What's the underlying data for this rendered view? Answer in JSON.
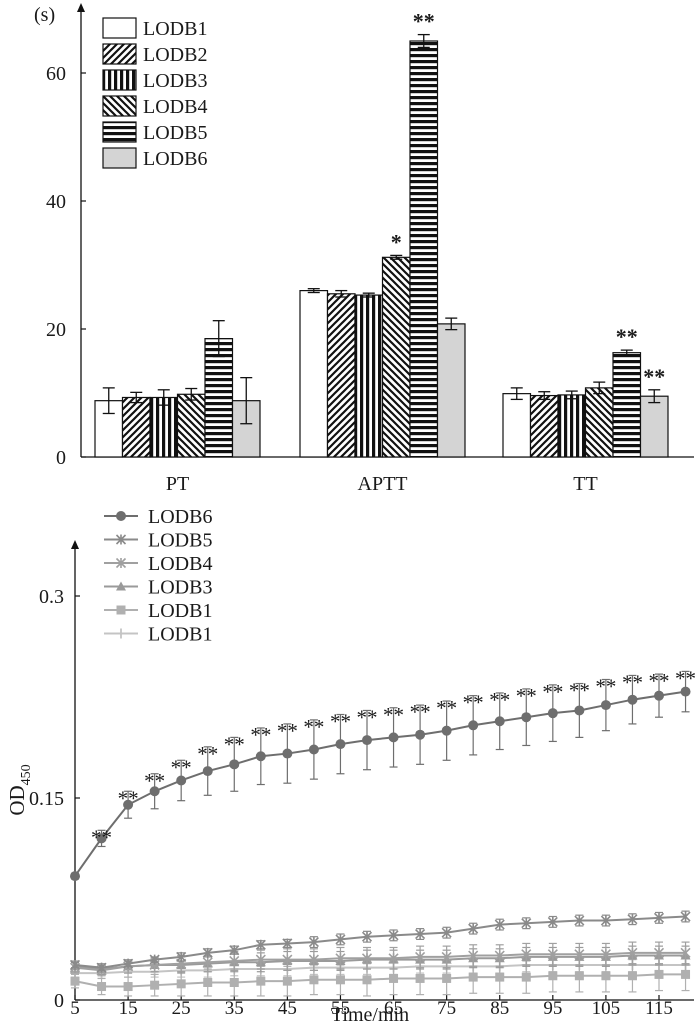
{
  "chart_data": [
    {
      "type": "bar",
      "ylabel": "(s)",
      "ylim": [
        0,
        70
      ],
      "yticks": [
        0,
        20,
        40,
        60
      ],
      "categories": [
        "PT",
        "APTT",
        "TT"
      ],
      "legend_position": "top-left",
      "series": [
        {
          "name": "LODB1",
          "pattern": "white",
          "values": [
            8.8,
            26.0,
            9.9
          ],
          "errors": [
            2.0,
            0.3,
            0.9
          ]
        },
        {
          "name": "LODB2",
          "pattern": "diag-right",
          "values": [
            9.3,
            25.5,
            9.6
          ],
          "errors": [
            0.8,
            0.5,
            0.6
          ]
        },
        {
          "name": "LODB3",
          "pattern": "vertical",
          "values": [
            9.3,
            25.3,
            9.7
          ],
          "errors": [
            1.2,
            0.3,
            0.6
          ]
        },
        {
          "name": "LODB4",
          "pattern": "diag-left",
          "values": [
            9.8,
            31.2,
            10.8
          ],
          "errors": [
            0.9,
            0.3,
            0.9
          ]
        },
        {
          "name": "LODB5",
          "pattern": "horizontal",
          "values": [
            18.5,
            65.0,
            16.3
          ],
          "errors": [
            2.8,
            1.0,
            0.4
          ]
        },
        {
          "name": "LODB6",
          "pattern": "gray",
          "values": [
            8.8,
            20.8,
            9.5
          ],
          "errors": [
            3.6,
            0.9,
            1.0
          ]
        }
      ],
      "annotations": [
        {
          "series": 3,
          "category": 1,
          "text": "*"
        },
        {
          "series": 4,
          "category": 1,
          "text": "**"
        },
        {
          "series": 4,
          "category": 2,
          "text": "**"
        },
        {
          "series": 5,
          "category": 2,
          "text": "**"
        }
      ]
    },
    {
      "type": "line",
      "xlabel": "Time/min",
      "ylabel": "OD",
      "ylabel_sub": "450",
      "xlim": [
        5,
        120
      ],
      "ylim": [
        0,
        0.35
      ],
      "xticks": [
        5,
        15,
        25,
        35,
        45,
        55,
        65,
        75,
        85,
        95,
        105,
        115
      ],
      "yticks": [
        0,
        0.15,
        0.3
      ],
      "ytick_labels": [
        "0",
        "0.15",
        "0.3"
      ],
      "legend_position": "top-left",
      "x": [
        5,
        10,
        15,
        20,
        25,
        30,
        35,
        40,
        45,
        50,
        55,
        60,
        65,
        70,
        75,
        80,
        85,
        90,
        95,
        100,
        105,
        110,
        115,
        120
      ],
      "series": [
        {
          "name": "LODB6",
          "marker": "circle",
          "color": "#6e6e6e",
          "values": [
            0.092,
            0.12,
            0.145,
            0.155,
            0.163,
            0.17,
            0.175,
            0.181,
            0.183,
            0.186,
            0.19,
            0.193,
            0.195,
            0.197,
            0.2,
            0.204,
            0.207,
            0.21,
            0.213,
            0.215,
            0.219,
            0.223,
            0.226,
            0.229
          ],
          "errors": [
            0.002,
            0.006,
            0.01,
            0.013,
            0.015,
            0.018,
            0.02,
            0.021,
            0.022,
            0.022,
            0.022,
            0.022,
            0.022,
            0.022,
            0.022,
            0.022,
            0.021,
            0.021,
            0.021,
            0.02,
            0.019,
            0.018,
            0.016,
            0.015
          ]
        },
        {
          "name": "LODB5",
          "marker": "x",
          "color": "#8a8a8a",
          "values": [
            0.026,
            0.024,
            0.027,
            0.03,
            0.032,
            0.035,
            0.037,
            0.041,
            0.042,
            0.043,
            0.045,
            0.047,
            0.048,
            0.049,
            0.05,
            0.053,
            0.056,
            0.057,
            0.058,
            0.059,
            0.059,
            0.06,
            0.061,
            0.062
          ],
          "errors": [
            0.002,
            0.002,
            0.002,
            0.002,
            0.003,
            0.003,
            0.003,
            0.003,
            0.003,
            0.004,
            0.004,
            0.004,
            0.004,
            0.004,
            0.004,
            0.004,
            0.004,
            0.004,
            0.004,
            0.004,
            0.004,
            0.004,
            0.004,
            0.004
          ]
        },
        {
          "name": "LODB4",
          "marker": "x",
          "color": "#a0a0a0",
          "values": [
            0.024,
            0.022,
            0.025,
            0.026,
            0.027,
            0.028,
            0.029,
            0.03,
            0.03,
            0.03,
            0.031,
            0.031,
            0.031,
            0.032,
            0.032,
            0.033,
            0.033,
            0.034,
            0.034,
            0.034,
            0.034,
            0.035,
            0.035,
            0.035
          ],
          "errors": [
            0.004,
            0.004,
            0.005,
            0.005,
            0.006,
            0.007,
            0.007,
            0.007,
            0.008,
            0.008,
            0.008,
            0.008,
            0.008,
            0.008,
            0.008,
            0.008,
            0.008,
            0.008,
            0.008,
            0.008,
            0.008,
            0.008,
            0.008,
            0.008
          ]
        },
        {
          "name": "LODB3",
          "marker": "triangle",
          "color": "#9a9a9a",
          "values": [
            0.025,
            0.023,
            0.025,
            0.026,
            0.026,
            0.027,
            0.028,
            0.028,
            0.029,
            0.029,
            0.029,
            0.03,
            0.03,
            0.03,
            0.03,
            0.031,
            0.031,
            0.032,
            0.032,
            0.032,
            0.032,
            0.033,
            0.033,
            0.033
          ],
          "errors": [
            0.004,
            0.004,
            0.005,
            0.005,
            0.006,
            0.006,
            0.007,
            0.007,
            0.007,
            0.007,
            0.007,
            0.007,
            0.007,
            0.007,
            0.007,
            0.007,
            0.007,
            0.007,
            0.007,
            0.007,
            0.007,
            0.007,
            0.007,
            0.007
          ]
        },
        {
          "name": "LODB1",
          "marker": "square",
          "color": "#b0b0b0",
          "values": [
            0.014,
            0.01,
            0.01,
            0.011,
            0.012,
            0.013,
            0.013,
            0.014,
            0.014,
            0.015,
            0.015,
            0.015,
            0.016,
            0.016,
            0.016,
            0.017,
            0.017,
            0.017,
            0.018,
            0.018,
            0.018,
            0.018,
            0.019,
            0.019
          ],
          "errors": [
            0.005,
            0.006,
            0.007,
            0.008,
            0.009,
            0.01,
            0.01,
            0.011,
            0.011,
            0.011,
            0.011,
            0.012,
            0.012,
            0.012,
            0.012,
            0.012,
            0.012,
            0.012,
            0.012,
            0.012,
            0.012,
            0.012,
            0.012,
            0.012
          ]
        },
        {
          "name": "LODB1",
          "marker": "plus",
          "color": "#c4c4c4",
          "values": [
            0.02,
            0.02,
            0.021,
            0.021,
            0.022,
            0.022,
            0.023,
            0.023,
            0.023,
            0.024,
            0.024,
            0.024,
            0.024,
            0.025,
            0.025,
            0.025,
            0.025,
            0.026,
            0.026,
            0.026,
            0.026,
            0.026,
            0.026,
            0.026
          ],
          "errors": [
            0.003,
            0.004,
            0.004,
            0.004,
            0.005,
            0.005,
            0.005,
            0.005,
            0.005,
            0.005,
            0.005,
            0.005,
            0.005,
            0.005,
            0.005,
            0.005,
            0.005,
            0.005,
            0.005,
            0.005,
            0.005,
            0.005,
            0.005,
            0.005
          ]
        }
      ],
      "annotations": [
        {
          "x": 10,
          "text": "**"
        },
        {
          "x": 15,
          "text": "**"
        },
        {
          "x": 20,
          "text": "**"
        },
        {
          "x": 25,
          "text": "**"
        },
        {
          "x": 30,
          "text": "**"
        },
        {
          "x": 35,
          "text": "**"
        },
        {
          "x": 40,
          "text": "**"
        },
        {
          "x": 45,
          "text": "**"
        },
        {
          "x": 50,
          "text": "**"
        },
        {
          "x": 55,
          "text": "**"
        },
        {
          "x": 60,
          "text": "**"
        },
        {
          "x": 65,
          "text": "**"
        },
        {
          "x": 70,
          "text": "**"
        },
        {
          "x": 75,
          "text": "**"
        },
        {
          "x": 80,
          "text": "**"
        },
        {
          "x": 85,
          "text": "**"
        },
        {
          "x": 90,
          "text": "**"
        },
        {
          "x": 95,
          "text": "**"
        },
        {
          "x": 100,
          "text": "**"
        },
        {
          "x": 105,
          "text": "**"
        },
        {
          "x": 110,
          "text": "**"
        },
        {
          "x": 115,
          "text": "**"
        },
        {
          "x": 120,
          "text": "**"
        }
      ]
    }
  ]
}
